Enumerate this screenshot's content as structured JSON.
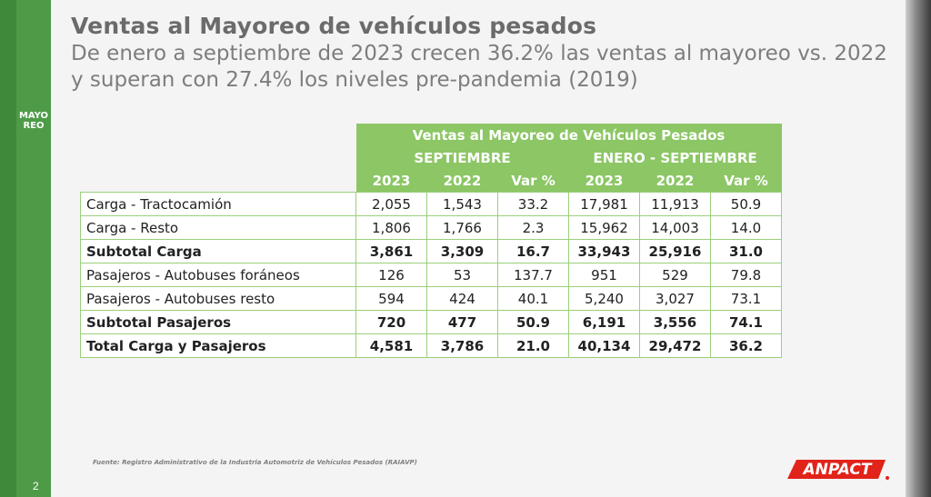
{
  "sidebar": {
    "label": "MAYOREO",
    "page_number": "2"
  },
  "header": {
    "title": "Ventas al Mayoreo de vehículos pesados",
    "subtitle": "De enero a septiembre de 2023 crecen 36.2% las ventas al mayoreo vs. 2022 y superan con 27.4% los niveles pre-pandemia (2019)"
  },
  "table": {
    "title": "Ventas al Mayoreo de Vehículos Pesados",
    "group_headers": [
      "SEPTIEMBRE",
      "ENERO - SEPTIEMBRE"
    ],
    "column_headers": [
      "2023",
      "2022",
      "Var %",
      "2023",
      "2022",
      "Var %"
    ],
    "rows": [
      {
        "label": "Carga - Tractocamión",
        "values": [
          "2,055",
          "1,543",
          "33.2",
          "17,981",
          "11,913",
          "50.9"
        ],
        "bold": false
      },
      {
        "label": "Carga - Resto",
        "values": [
          "1,806",
          "1,766",
          "2.3",
          "15,962",
          "14,003",
          "14.0"
        ],
        "bold": false
      },
      {
        "label": "Subtotal Carga",
        "values": [
          "3,861",
          "3,309",
          "16.7",
          "33,943",
          "25,916",
          "31.0"
        ],
        "bold": true
      },
      {
        "label": "Pasajeros - Autobuses foráneos",
        "values": [
          "126",
          "53",
          "137.7",
          "951",
          "529",
          "79.8"
        ],
        "bold": false
      },
      {
        "label": "Pasajeros - Autobuses resto",
        "values": [
          "594",
          "424",
          "40.1",
          "5,240",
          "3,027",
          "73.1"
        ],
        "bold": false
      },
      {
        "label": "Subtotal Pasajeros",
        "values": [
          "720",
          "477",
          "50.9",
          "6,191",
          "3,556",
          "74.1"
        ],
        "bold": true
      },
      {
        "label": "Total Carga y Pasajeros",
        "values": [
          "4,581",
          "3,786",
          "21.0",
          "40,134",
          "29,472",
          "36.2"
        ],
        "bold": true
      }
    ]
  },
  "footer": {
    "source": "Fuente: Registro Administrativo de la Industria Automotriz de Vehículos Pesados (RAIAVP)",
    "logo_text": "ANPACT"
  },
  "colors": {
    "sidebar_green": "#4e9b47",
    "header_green": "#8cc665",
    "logo_red": "#e2231a"
  }
}
